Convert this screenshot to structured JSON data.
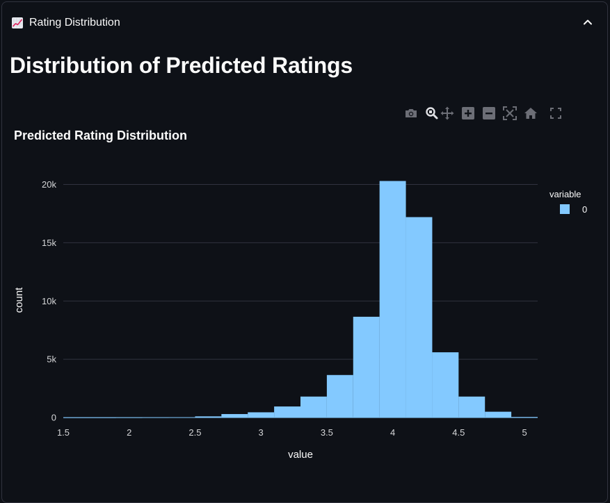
{
  "expander": {
    "label": "Rating Distribution",
    "icon": "chart-increasing-icon",
    "expanded": true
  },
  "page": {
    "title": "Distribution of Predicted Ratings"
  },
  "modebar": {
    "buttons": [
      "camera-icon",
      "zoom-icon",
      "pan-icon",
      "zoom-in-icon",
      "zoom-out-icon",
      "autoscale-icon",
      "reset-axes-icon",
      "fullscreen-icon"
    ]
  },
  "colors": {
    "background": "#0e1117",
    "bar": "#83c9ff",
    "grid": "#31333f",
    "text": "#fafafa",
    "tick": "#d5d6d8",
    "modebar_icon": "#6c6e76"
  },
  "chart_data": {
    "type": "bar",
    "title": "Predicted Rating Distribution",
    "xlabel": "value",
    "ylabel": "count",
    "xlim": [
      1.5,
      5.1
    ],
    "ylim": [
      0,
      22000
    ],
    "x_ticks": [
      {
        "value": 1.5,
        "label": "1.5"
      },
      {
        "value": 2,
        "label": "2"
      },
      {
        "value": 2.5,
        "label": "2.5"
      },
      {
        "value": 3,
        "label": "3"
      },
      {
        "value": 3.5,
        "label": "3.5"
      },
      {
        "value": 4,
        "label": "4"
      },
      {
        "value": 4.5,
        "label": "4.5"
      },
      {
        "value": 5,
        "label": "5"
      }
    ],
    "y_ticks": [
      {
        "value": 0,
        "label": "0"
      },
      {
        "value": 5000,
        "label": "5k"
      },
      {
        "value": 10000,
        "label": "10k"
      },
      {
        "value": 15000,
        "label": "15k"
      },
      {
        "value": 20000,
        "label": "20k"
      }
    ],
    "bin_width": 0.2,
    "bins": [
      {
        "x0": 1.5,
        "x1": 1.7,
        "count": 5
      },
      {
        "x0": 1.7,
        "x1": 1.9,
        "count": 5
      },
      {
        "x0": 1.9,
        "x1": 2.1,
        "count": 10
      },
      {
        "x0": 2.1,
        "x1": 2.3,
        "count": 15
      },
      {
        "x0": 2.3,
        "x1": 2.5,
        "count": 30
      },
      {
        "x0": 2.5,
        "x1": 2.7,
        "count": 100
      },
      {
        "x0": 2.7,
        "x1": 2.9,
        "count": 300
      },
      {
        "x0": 2.9,
        "x1": 3.1,
        "count": 450
      },
      {
        "x0": 3.1,
        "x1": 3.3,
        "count": 950
      },
      {
        "x0": 3.3,
        "x1": 3.5,
        "count": 1800
      },
      {
        "x0": 3.5,
        "x1": 3.7,
        "count": 3650
      },
      {
        "x0": 3.7,
        "x1": 3.9,
        "count": 8650
      },
      {
        "x0": 3.9,
        "x1": 4.1,
        "count": 20300
      },
      {
        "x0": 4.1,
        "x1": 4.3,
        "count": 17200
      },
      {
        "x0": 4.3,
        "x1": 4.5,
        "count": 5600
      },
      {
        "x0": 4.5,
        "x1": 4.7,
        "count": 1800
      },
      {
        "x0": 4.7,
        "x1": 4.9,
        "count": 500
      },
      {
        "x0": 4.9,
        "x1": 5.1,
        "count": 50
      }
    ],
    "grid": true,
    "legend": {
      "title": "variable",
      "placement": "top-right",
      "entries": [
        {
          "name": "0",
          "color": "#83c9ff"
        }
      ]
    }
  }
}
